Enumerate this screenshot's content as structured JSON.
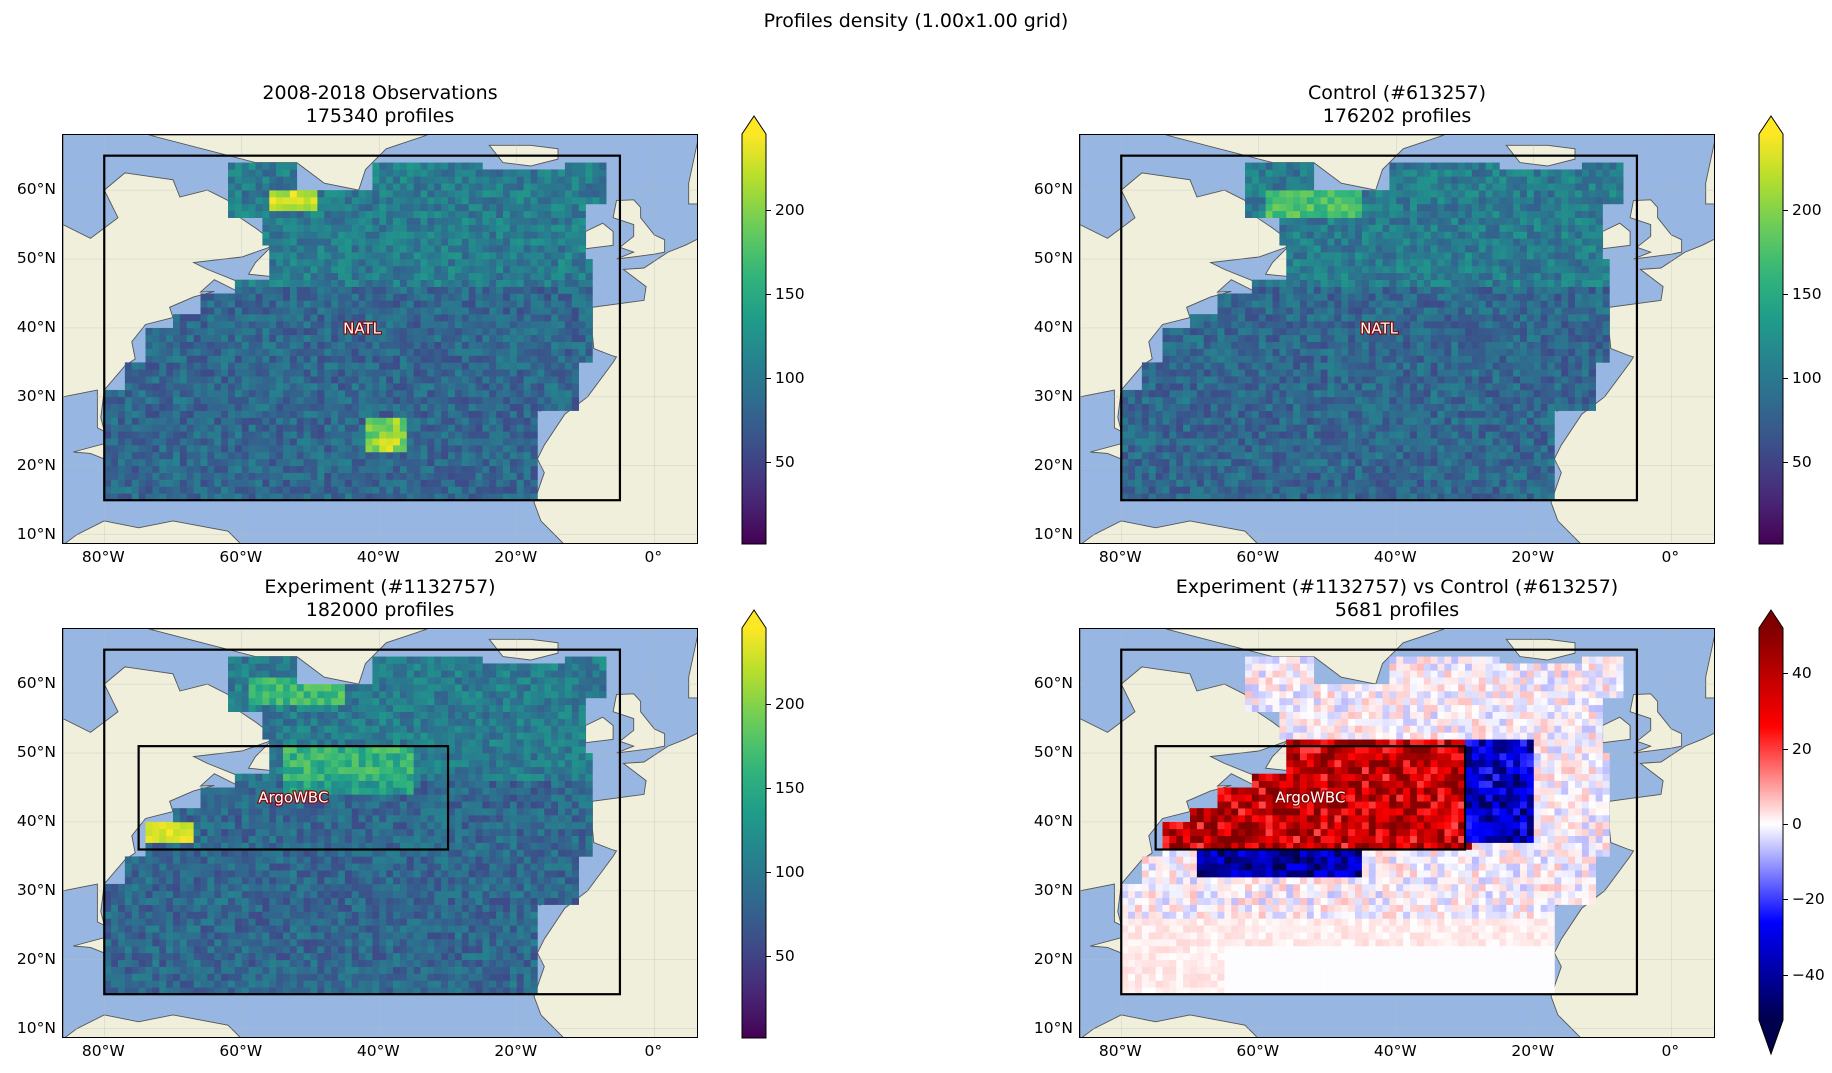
{
  "suptitle": "Profiles density (1.00x1.00 grid)",
  "panels": [
    {
      "title_line1": "2008-2018 Observations",
      "title_line2": "175340 profiles",
      "colormap": "viridis",
      "region_label": "NATL",
      "cbar_ticks": [
        "200",
        "150",
        "100",
        "50"
      ],
      "cbar_values": [
        200,
        150,
        100,
        50
      ],
      "cbar_range": [
        1,
        245
      ],
      "cbar_extend": "max"
    },
    {
      "title_line1": "Control (#613257)",
      "title_line2": "176202 profiles",
      "colormap": "viridis",
      "region_label": "NATL",
      "cbar_ticks": [
        "200",
        "150",
        "100",
        "50"
      ],
      "cbar_values": [
        200,
        150,
        100,
        50
      ],
      "cbar_range": [
        1,
        245
      ],
      "cbar_extend": "max"
    },
    {
      "title_line1": "Experiment (#1132757)",
      "title_line2": "182000 profiles",
      "colormap": "viridis",
      "region_label": "ArgoWBC",
      "cbar_ticks": [
        "200",
        "150",
        "100",
        "50"
      ],
      "cbar_values": [
        200,
        150,
        100,
        50
      ],
      "cbar_range": [
        1,
        245
      ],
      "cbar_extend": "max"
    },
    {
      "title_line1": "Experiment (#1132757) vs Control (#613257)",
      "title_line2": "5681 profiles",
      "colormap": "seismic",
      "region_label": "ArgoWBC",
      "cbar_ticks": [
        "40",
        "20",
        "0",
        "−20",
        "−40"
      ],
      "cbar_values": [
        40,
        20,
        0,
        -20,
        -40
      ],
      "cbar_range": [
        -52,
        52
      ],
      "cbar_extend": "both"
    }
  ],
  "x_ticks": [
    "80°W",
    "60°W",
    "40°W",
    "20°W",
    "0°"
  ],
  "y_ticks": [
    "60°N",
    "50°N",
    "40°N",
    "30°N",
    "20°N",
    "10°N"
  ],
  "map_extent": {
    "lon": [
      -86,
      6.5
    ],
    "lat": [
      8.5,
      68
    ]
  },
  "regions": {
    "NATL": {
      "lon": [
        -80,
        -5
      ],
      "lat": [
        15,
        65
      ]
    },
    "ArgoWBC": {
      "lon": [
        -75,
        -30
      ],
      "lat": [
        36,
        51
      ]
    }
  },
  "colors": {
    "ocean": "#97b6e1",
    "land": "#efefdb",
    "coastline": "#555555"
  }
}
